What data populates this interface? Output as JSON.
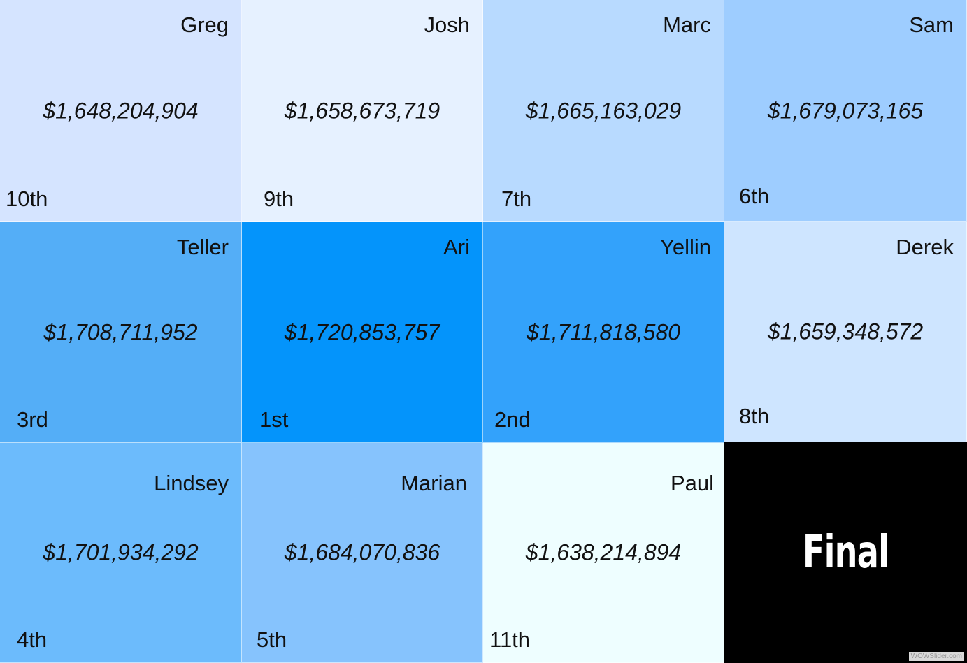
{
  "tiles": [
    {
      "name": "Greg",
      "amount": "$1,648,204,904",
      "rank": "10th",
      "color": "#d5e4ff"
    },
    {
      "name": "Josh",
      "amount": "$1,658,673,719",
      "rank": "9th",
      "color": "#e6f1ff"
    },
    {
      "name": "Marc",
      "amount": "$1,665,163,029",
      "rank": "7th",
      "color": "#b8daff"
    },
    {
      "name": "Sam",
      "amount": "$1,679,073,165",
      "rank": "6th",
      "color": "#9ecdff"
    },
    {
      "name": "Teller",
      "amount": "$1,708,711,952",
      "rank": "3rd",
      "color": "#54aef7"
    },
    {
      "name": "Ari",
      "amount": "$1,720,853,757",
      "rank": "1st",
      "color": "#0494fb"
    },
    {
      "name": "Yellin",
      "amount": "$1,711,818,580",
      "rank": "2nd",
      "color": "#33a2fb"
    },
    {
      "name": "Derek",
      "amount": "$1,659,348,572",
      "rank": "8th",
      "color": "#cee5ff"
    },
    {
      "name": "Lindsey",
      "amount": "$1,701,934,292",
      "rank": "4th",
      "color": "#6cbbfc"
    },
    {
      "name": "Marian",
      "amount": "$1,684,070,836",
      "rank": "5th",
      "color": "#86c3fd"
    },
    {
      "name": "Paul",
      "amount": "$1,638,214,894",
      "rank": "11th",
      "color": "#eefeff"
    }
  ],
  "final": {
    "label": "Final",
    "color": "#000000"
  },
  "watermark": "WOWSlider.com"
}
